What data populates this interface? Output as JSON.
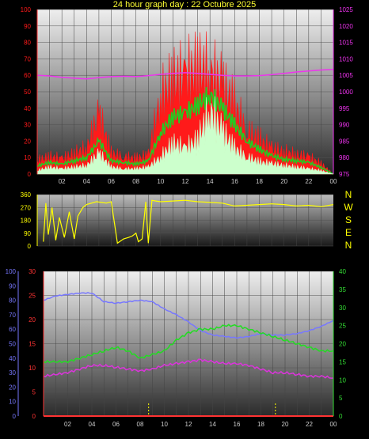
{
  "title": "24 hour graph day : 22 Octubre 2025",
  "colors": {
    "yellow_title": "#ffff33",
    "wind_gust": "#ff1a1a",
    "wind_avg": "#22cc22",
    "wind_min": "#ccffcc",
    "pressure": "#ee33ee",
    "wind_dir": "#ffff00",
    "temp_blue": "#7777ff",
    "temp_green": "#22dd22",
    "temp_magenta": "#dd33dd",
    "rain_red": "#ff3333",
    "axis_left_blue": "#7777ff",
    "axis_right_green": "#33dd33"
  },
  "time_labels": [
    "02",
    "04",
    "06",
    "08",
    "10",
    "12",
    "14",
    "16",
    "18",
    "20",
    "22",
    "00"
  ],
  "compass_labels": [
    "N",
    "W",
    "S",
    "E",
    "N"
  ],
  "chart_data": [
    {
      "type": "line",
      "panel": "wind-pressure",
      "x_hours": [
        0,
        1,
        2,
        3,
        4,
        5,
        6,
        7,
        8,
        9,
        10,
        11,
        12,
        13,
        14,
        15,
        16,
        17,
        18,
        19,
        20,
        21,
        22,
        23,
        24
      ],
      "left_axis": {
        "ylim": [
          0,
          100
        ],
        "ticks": [
          "0",
          "10",
          "20",
          "30",
          "40",
          "50",
          "60",
          "70",
          "80",
          "90",
          "100"
        ]
      },
      "right_axis": {
        "ylim": [
          975,
          1025
        ],
        "ticks": [
          "975",
          "980",
          "985",
          "990",
          "995",
          "1000",
          "1005",
          "1010",
          "1015",
          "1020",
          "1025"
        ]
      },
      "series": [
        {
          "key": "gust",
          "values": [
            8,
            10,
            9,
            12,
            15,
            35,
            12,
            10,
            9,
            11,
            45,
            55,
            58,
            62,
            60,
            52,
            40,
            25,
            20,
            15,
            13,
            11,
            10,
            6,
            0
          ]
        },
        {
          "key": "avg",
          "values": [
            5,
            7,
            6,
            8,
            10,
            20,
            8,
            7,
            6,
            8,
            25,
            35,
            37,
            42,
            48,
            40,
            30,
            20,
            15,
            11,
            9,
            8,
            7,
            4,
            0
          ]
        },
        {
          "key": "min",
          "values": [
            2,
            4,
            3,
            4,
            5,
            12,
            4,
            3,
            3,
            4,
            10,
            18,
            15,
            20,
            38,
            25,
            15,
            10,
            7,
            6,
            5,
            4,
            3,
            2,
            0
          ]
        }
      ],
      "pressure": {
        "values": [
          1005,
          1004.8,
          1004.4,
          1004.1,
          1003.9,
          1004.3,
          1004.6,
          1004.7,
          1004.6,
          1004.9,
          1005.3,
          1005.6,
          1005.8,
          1005.6,
          1005.3,
          1005,
          1004.8,
          1004.8,
          1004.9,
          1005.2,
          1005.6,
          1006,
          1006.3,
          1006.6,
          1006.8
        ]
      }
    },
    {
      "type": "line",
      "panel": "wind-direction",
      "ylim": [
        0,
        360
      ],
      "ticks": [
        "0",
        "90",
        "180",
        "270",
        "360"
      ],
      "x_hours": [
        0.5,
        0.7,
        0.9,
        1.2,
        1.5,
        1.8,
        2.2,
        2.6,
        3.0,
        3.3,
        3.7,
        4.0,
        4.4,
        4.8,
        5.2,
        5.6,
        6.0,
        6.5,
        7.0,
        7.4,
        7.7,
        8.0,
        8.2,
        8.5,
        8.8,
        9.0,
        9.3,
        9.6,
        10,
        11,
        12,
        13,
        14,
        15,
        16,
        17,
        18,
        19,
        20,
        21,
        22,
        23,
        24
      ],
      "values": [
        30,
        300,
        80,
        270,
        40,
        200,
        60,
        240,
        50,
        210,
        270,
        290,
        300,
        310,
        305,
        300,
        310,
        20,
        50,
        60,
        70,
        90,
        30,
        50,
        310,
        20,
        320,
        315,
        310,
        315,
        320,
        310,
        305,
        300,
        280,
        285,
        290,
        295,
        290,
        280,
        285,
        275,
        290
      ]
    },
    {
      "type": "line",
      "panel": "temperature-humidity",
      "x_hours": [
        0,
        1,
        2,
        3,
        4,
        5,
        6,
        7,
        8,
        9,
        10,
        11,
        12,
        13,
        14,
        15,
        16,
        17,
        18,
        19,
        20,
        21,
        22,
        23,
        24
      ],
      "left_outer_axis": {
        "ylim": [
          0,
          100
        ],
        "ticks": [
          "0",
          "10",
          "20",
          "30",
          "40",
          "50",
          "60",
          "70",
          "80",
          "90",
          "100"
        ]
      },
      "left_inner_axis": {
        "ylim": [
          0,
          30
        ],
        "ticks": [
          "0",
          "5",
          "10",
          "15",
          "20",
          "25",
          "30"
        ]
      },
      "right_axis": {
        "ylim": [
          0,
          40
        ],
        "ticks": [
          "0",
          "5",
          "10",
          "15",
          "20",
          "25",
          "30",
          "35",
          "40"
        ]
      },
      "series": [
        {
          "key": "humidity",
          "axis": "outer_left",
          "values": [
            80,
            83,
            84,
            85,
            85,
            79,
            78,
            79,
            80,
            79,
            74,
            70,
            65,
            59,
            56,
            55,
            54,
            55,
            57,
            56,
            56,
            57,
            59,
            62,
            66
          ]
        },
        {
          "key": "temperature",
          "axis": "right",
          "values": [
            15,
            15,
            15,
            16,
            17,
            18,
            19,
            18,
            16,
            17,
            18,
            21,
            23,
            24,
            24,
            25,
            25,
            24,
            23,
            22,
            21,
            20,
            19,
            18,
            18
          ]
        },
        {
          "key": "dewpoint",
          "axis": "right",
          "values": [
            11,
            11.5,
            12,
            13,
            14,
            14,
            13.5,
            13,
            12.5,
            13,
            14,
            14.5,
            15,
            15.5,
            15,
            14.5,
            14.5,
            14,
            13,
            12,
            12,
            11.5,
            11,
            11,
            10.5
          ]
        },
        {
          "key": "rain",
          "axis": "inner_left",
          "values": [
            0,
            0,
            0,
            0,
            0,
            0,
            0,
            0,
            0,
            0,
            0,
            0,
            0,
            0,
            0,
            0,
            0,
            0,
            0,
            0,
            0,
            0,
            0,
            0,
            0
          ]
        }
      ],
      "markers_hours": [
        8.7,
        19.2
      ]
    }
  ]
}
